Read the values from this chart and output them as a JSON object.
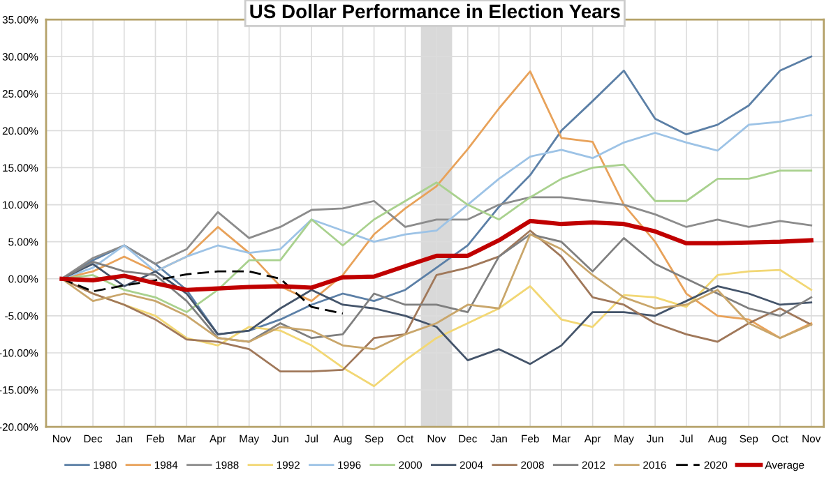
{
  "chart_data": {
    "type": "line",
    "title": "US Dollar Performance in Election Years",
    "categories": [
      "Nov",
      "Dec",
      "Jan",
      "Feb",
      "Mar",
      "Apr",
      "May",
      "Jun",
      "Jul",
      "Aug",
      "Sep",
      "Oct",
      "Nov",
      "Dec",
      "Jan",
      "Feb",
      "Mar",
      "Apr",
      "May",
      "Jun",
      "Jul",
      "Aug",
      "Sep",
      "Oct",
      "Nov"
    ],
    "ylim": [
      -20,
      35
    ],
    "yticks": [
      {
        "value": -20,
        "label": "-20.00%"
      },
      {
        "value": -15,
        "label": "-15.00%"
      },
      {
        "value": -10,
        "label": "-10.00%"
      },
      {
        "value": -5,
        "label": "-5.00%"
      },
      {
        "value": 0,
        "label": "0.00%"
      },
      {
        "value": 5,
        "label": "5.00%"
      },
      {
        "value": 10,
        "label": "10.00%"
      },
      {
        "value": 15,
        "label": "15.00%"
      },
      {
        "value": 20,
        "label": "20.00%"
      },
      {
        "value": 25,
        "label": "25.00%"
      },
      {
        "value": 30,
        "label": "30.00%"
      },
      {
        "value": 35,
        "label": "35.00%"
      }
    ],
    "grid": true,
    "legend": "bottom",
    "marker": "none",
    "series": [
      {
        "name": "1980",
        "color": "#5b7fa6",
        "values": [
          0,
          2.5,
          4.5,
          2,
          -1.5,
          -7.5,
          -7,
          -5.5,
          -3.5,
          -2,
          -3,
          -1.5,
          1.5,
          4.5,
          9.7,
          14,
          20,
          24,
          28.1,
          21.6,
          19.5,
          20.8,
          23.4,
          28.1,
          30
        ]
      },
      {
        "name": "1984",
        "color": "#e8a25a",
        "values": [
          0,
          1,
          3,
          1,
          3,
          7,
          3.5,
          -1,
          -3,
          0.5,
          6,
          9.5,
          12.5,
          17.5,
          23,
          28,
          19,
          18.5,
          10,
          5,
          -2,
          -5,
          -5.5,
          -8,
          -6
        ]
      },
      {
        "name": "1988",
        "color": "#8c8c8c",
        "values": [
          0,
          2.8,
          4.5,
          2,
          4,
          9,
          5.5,
          7,
          9.3,
          9.5,
          10.5,
          7,
          8,
          8,
          10,
          11,
          11,
          10.5,
          10,
          8.7,
          7,
          8,
          7,
          7.8,
          7.2
        ]
      },
      {
        "name": "1992",
        "color": "#f2d774",
        "values": [
          0,
          -2,
          -3.5,
          -5,
          -8,
          -9,
          -6.5,
          -7,
          -9,
          -12,
          -14.5,
          -11,
          -8,
          -6,
          -4,
          -1,
          -5.5,
          -6.5,
          -2.2,
          -2.5,
          -3.8,
          0.5,
          1,
          1.2,
          -1.5
        ]
      },
      {
        "name": "1996",
        "color": "#9dc3e6",
        "values": [
          0,
          1.5,
          4.5,
          1,
          3,
          4.5,
          3.5,
          4,
          8,
          6.5,
          5,
          6,
          6.5,
          10,
          13.5,
          16.5,
          17.4,
          16.3,
          18.4,
          19.7,
          18.4,
          17.3,
          20.8,
          21.2,
          22.1
        ]
      },
      {
        "name": "2000",
        "color": "#a9d18e",
        "values": [
          0,
          0.5,
          -1.5,
          -2.5,
          -4.5,
          -1.5,
          2.5,
          2.5,
          8,
          4.5,
          8,
          10.5,
          13,
          10,
          8,
          11,
          13.5,
          15,
          15.4,
          10.5,
          10.5,
          13.5,
          13.5,
          14.6,
          14.6
        ]
      },
      {
        "name": "2004",
        "color": "#44546a",
        "values": [
          0,
          2,
          -1,
          1,
          -2,
          -7.5,
          -7,
          -4,
          -1.5,
          -3.5,
          -4,
          -5,
          -6.5,
          -11,
          -9.5,
          -11.5,
          -9,
          -4.5,
          -4.5,
          -5,
          -3,
          -1,
          -2,
          -3.5,
          -3.2
        ]
      },
      {
        "name": "2008",
        "color": "#a0785a",
        "values": [
          0,
          -2,
          -3.5,
          -5.5,
          -8.2,
          -8.5,
          -9.5,
          -12.5,
          -12.5,
          -12.3,
          -8,
          -7.5,
          0.5,
          1.5,
          3,
          6.5,
          3,
          -2.5,
          -3.5,
          -6,
          -7.5,
          -8.5,
          -6,
          -4,
          -6.2
        ]
      },
      {
        "name": "2012",
        "color": "#7f7f7f",
        "values": [
          0,
          2.3,
          1,
          0.5,
          -3,
          -8,
          -8.5,
          -6,
          -8,
          -7.5,
          -2,
          -3.5,
          -3.5,
          -4.5,
          3,
          6,
          5,
          1,
          5.5,
          2,
          0,
          -2,
          -4,
          -5,
          -2.5
        ]
      },
      {
        "name": "2016",
        "color": "#c9a66b",
        "values": [
          0,
          -3,
          -2,
          -3,
          -5,
          -8,
          -8.5,
          -6.5,
          -7,
          -9,
          -9.5,
          -7.5,
          -6,
          -3.5,
          -4,
          6,
          4,
          0.5,
          -2.5,
          -4,
          -3.5,
          -1.5,
          -6,
          -8,
          -6.2
        ]
      },
      {
        "name": "2020",
        "color": "#000000",
        "line_style": "dashed",
        "values": [
          0,
          -1.7,
          -0.9,
          -0.2,
          0.6,
          1.0,
          1.0,
          0,
          -3.8,
          -4.7,
          null,
          null,
          null,
          null,
          null,
          null,
          null,
          null,
          null,
          null,
          null,
          null,
          null,
          null,
          null
        ]
      },
      {
        "name": "Average",
        "color": "#c00000",
        "values": [
          0,
          -0.2,
          0.4,
          -0.6,
          -1.5,
          -1.3,
          -1.1,
          -1.0,
          -1.2,
          0.2,
          0.3,
          1.7,
          3.1,
          3.1,
          5.2,
          7.8,
          7.4,
          7.6,
          7.4,
          6.4,
          4.8,
          4.8,
          4.9,
          5.0,
          5.2
        ]
      }
    ]
  }
}
